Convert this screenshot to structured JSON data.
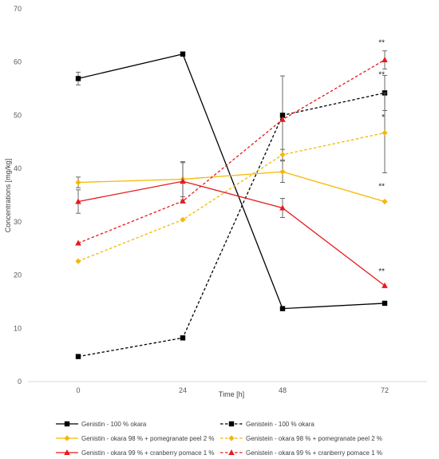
{
  "chart_data": {
    "type": "line",
    "title": "",
    "xlabel": "Time [h]",
    "ylabel": "Concentrations [mg/kg]",
    "x": [
      0,
      24,
      48,
      72
    ],
    "xlim": [
      0,
      72
    ],
    "ylim": [
      0,
      70
    ],
    "yticks": [
      0,
      10,
      20,
      30,
      40,
      50,
      60,
      70
    ],
    "grid": "none",
    "legend_position": "bottom",
    "series": [
      {
        "name": "Genistin - 100 % okara",
        "values": [
          56.9,
          61.5,
          13.7,
          14.7
        ],
        "error": [
          1.2,
          0,
          0,
          0
        ],
        "color": "#000000",
        "marker": "square",
        "dashed": false
      },
      {
        "name": "Genistein - 100 % okara",
        "values": [
          4.7,
          8.2,
          50.0,
          54.2
        ],
        "error": [
          0,
          0,
          7.4,
          3.3
        ],
        "color": "#000000",
        "marker": "square",
        "dashed": true
      },
      {
        "name": "Genistin - okara 98 % + pomegranate peel 2 %",
        "values": [
          37.4,
          38.0,
          39.4,
          33.8
        ],
        "error": [
          1.0,
          3.3,
          2.0,
          0
        ],
        "color": "#f5b800",
        "marker": "diamond",
        "dashed": false
      },
      {
        "name": "Genistein - okara 98 % + pomegranate peel 2 %",
        "values": [
          22.6,
          30.4,
          42.6,
          46.7
        ],
        "error": [
          0,
          0,
          1.0,
          7.5
        ],
        "color": "#f5b800",
        "marker": "diamond",
        "dashed": true
      },
      {
        "name": "Genistin - okara 99 % + cranberry pomace 1 %",
        "values": [
          33.8,
          37.6,
          32.6,
          18.0
        ],
        "error": [
          2.2,
          3.5,
          1.8,
          0
        ],
        "color": "#e8191c",
        "marker": "triangle",
        "dashed": false
      },
      {
        "name": "Genistein - okara 99 % + cranberry pomace 1 %",
        "values": [
          26.0,
          33.9,
          49.2,
          60.4
        ],
        "error": [
          0,
          0,
          0,
          1.7
        ],
        "color": "#e8191c",
        "marker": "triangle",
        "dashed": true
      }
    ],
    "annotations": [
      {
        "text": "**",
        "x": 72,
        "y": 63.2
      },
      {
        "text": "**",
        "x": 72,
        "y": 57.2
      },
      {
        "text": "*",
        "x": 72,
        "y": 49.2
      },
      {
        "text": "**",
        "x": 72,
        "y": 36.2
      },
      {
        "text": "**",
        "x": 72,
        "y": 20.2
      }
    ]
  }
}
